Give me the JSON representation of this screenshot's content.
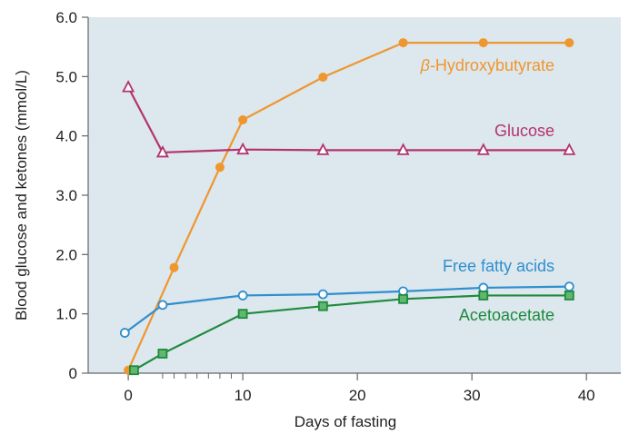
{
  "chart_data": {
    "type": "line",
    "title": "",
    "xlabel": "Days of fasting",
    "ylabel": "Blood glucose and ketones (mmol/L)",
    "xlim": [
      -3.5,
      43
    ],
    "ylim": [
      0,
      6.0
    ],
    "x_ticks": [
      0,
      10,
      20,
      30,
      40
    ],
    "x_tick_labels": [
      "0",
      "10",
      "20",
      "30",
      "40"
    ],
    "x_minor_ticks": [
      3,
      4,
      5,
      6,
      7,
      8,
      9
    ],
    "y_ticks": [
      0,
      1.0,
      2.0,
      3.0,
      4.0,
      5.0,
      6.0
    ],
    "y_tick_labels": [
      "0",
      "1.0",
      "2.0",
      "3.0",
      "4.0",
      "5.0",
      "6.0"
    ],
    "grid": false,
    "plot_background": "#dce7ee",
    "series": [
      {
        "name": "β-Hydroxybutyrate",
        "label_prefix": "β",
        "label_rest": "-Hydroxybutyrate",
        "color": "#f0962e",
        "marker": "filled-circle",
        "x": [
          0,
          4,
          8,
          10,
          17,
          24,
          31,
          38.5
        ],
        "y": [
          0.05,
          1.78,
          3.47,
          4.27,
          4.99,
          5.57,
          5.57,
          5.57
        ]
      },
      {
        "name": "Glucose",
        "color": "#b4336f",
        "marker": "open-triangle",
        "x": [
          0,
          3,
          10,
          17,
          24,
          31,
          38.5
        ],
        "y": [
          4.82,
          3.72,
          3.77,
          3.76,
          3.76,
          3.76,
          3.76
        ]
      },
      {
        "name": "Free fatty acids",
        "color": "#2f8fcd",
        "marker": "open-circle",
        "x": [
          -0.3,
          3,
          10,
          17,
          24,
          31,
          38.5
        ],
        "y": [
          0.68,
          1.15,
          1.31,
          1.33,
          1.38,
          1.44,
          1.46
        ]
      },
      {
        "name": "Acetoacetate",
        "color": "#1f8a3d",
        "marker": "square",
        "x": [
          0.5,
          3,
          10,
          17,
          24,
          31,
          38.5
        ],
        "y": [
          0.05,
          0.33,
          1.0,
          1.13,
          1.25,
          1.31,
          1.31
        ]
      }
    ]
  }
}
